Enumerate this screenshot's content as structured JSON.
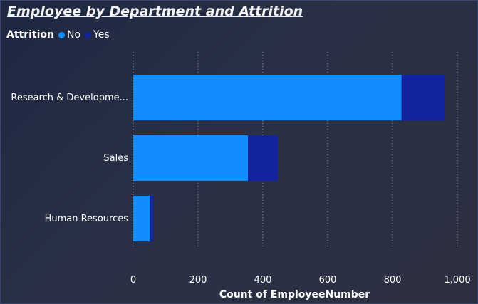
{
  "chart_data": {
    "type": "bar",
    "orientation": "horizontal",
    "stacked": true,
    "title": "Employee by Department and Attrition",
    "legend_title": "Attrition",
    "legend_position": "top-left",
    "categories": [
      "Research & Developme...",
      "Sales",
      "Human Resources"
    ],
    "series": [
      {
        "name": "No",
        "color": "#118dff",
        "values": [
          828,
          354,
          51
        ]
      },
      {
        "name": "Yes",
        "color": "#12239e",
        "values": [
          133,
          92,
          12
        ]
      }
    ],
    "xlabel": "Count of EmployeeNumber",
    "ylabel": "",
    "xlim": [
      0,
      1000
    ],
    "xticks": [
      "0",
      "200",
      "400",
      "600",
      "800",
      "1,000"
    ],
    "xtick_values": [
      0,
      200,
      400,
      600,
      800,
      1000
    ],
    "grid": "vertical dotted"
  }
}
